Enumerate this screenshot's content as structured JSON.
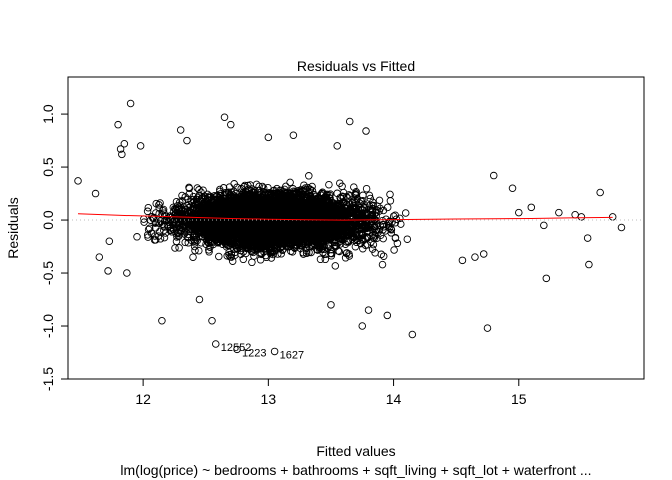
{
  "chart_data": {
    "type": "scatter",
    "title": "Residuals vs Fitted",
    "xlabel": "Fitted values",
    "subtitle": "lm(log(price) ~ bedrooms + bathrooms + sqft_living + sqft_lot + waterfront  ...",
    "ylabel": "Residuals",
    "xlim": [
      11.4,
      16.0
    ],
    "ylim": [
      -1.5,
      1.35
    ],
    "x_ticks": [
      12,
      13,
      14,
      15
    ],
    "y_ticks": [
      -1.5,
      -1.0,
      -0.5,
      0.0,
      0.5,
      1.0
    ],
    "x_tick_labels": [
      "12",
      "13",
      "14",
      "15"
    ],
    "y_tick_labels": [
      "-1.5",
      "-1.0",
      "-0.5",
      "0.0",
      "0.5",
      "1.0"
    ],
    "reference_line": {
      "y": 0,
      "style": "dotted",
      "color": "#bebebe"
    },
    "smoother": {
      "color": "#ff0000",
      "x": [
        11.48,
        11.8,
        12.1,
        12.4,
        12.7,
        13.0,
        13.3,
        13.6,
        13.9,
        14.2,
        14.5,
        14.8,
        15.1,
        15.4,
        15.75
      ],
      "y": [
        0.06,
        0.045,
        0.035,
        0.025,
        0.015,
        0.008,
        0.003,
        0.0,
        0.002,
        0.006,
        0.01,
        0.012,
        0.015,
        0.02,
        0.025
      ]
    },
    "point_color": "#000000",
    "points": [
      [
        11.48,
        0.37
      ],
      [
        11.62,
        0.25
      ],
      [
        11.65,
        -0.35
      ],
      [
        11.72,
        -0.48
      ],
      [
        11.73,
        -0.2
      ],
      [
        11.8,
        0.9
      ],
      [
        11.82,
        0.67
      ],
      [
        11.83,
        0.62
      ],
      [
        11.85,
        0.72
      ],
      [
        11.87,
        -0.5
      ],
      [
        11.9,
        1.1
      ],
      [
        11.98,
        0.7
      ],
      [
        12.3,
        0.85
      ],
      [
        12.55,
        -0.95
      ],
      [
        12.65,
        0.97
      ],
      [
        12.7,
        0.9
      ],
      [
        13.0,
        0.78
      ],
      [
        13.2,
        0.8
      ],
      [
        13.65,
        0.93
      ],
      [
        13.78,
        0.84
      ],
      [
        13.95,
        -0.9
      ],
      [
        14.15,
        -1.08
      ],
      [
        14.75,
        -1.02
      ],
      [
        14.8,
        0.42
      ],
      [
        14.95,
        0.3
      ],
      [
        15.0,
        0.07
      ],
      [
        15.1,
        0.12
      ],
      [
        15.2,
        -0.05
      ],
      [
        15.22,
        -0.55
      ],
      [
        15.32,
        0.07
      ],
      [
        15.45,
        0.05
      ],
      [
        15.5,
        0.03
      ],
      [
        15.55,
        -0.17
      ],
      [
        15.56,
        -0.42
      ],
      [
        15.65,
        0.26
      ],
      [
        15.75,
        0.03
      ],
      [
        15.82,
        -0.07
      ],
      [
        14.72,
        -0.32
      ],
      [
        14.65,
        -0.35
      ],
      [
        14.55,
        -0.38
      ],
      [
        12.58,
        -1.17
      ],
      [
        12.75,
        -1.22
      ],
      [
        13.05,
        -1.24
      ],
      [
        12.15,
        -0.95
      ],
      [
        12.45,
        -0.75
      ],
      [
        13.5,
        -0.8
      ],
      [
        13.75,
        -1.0
      ],
      [
        13.8,
        -0.85
      ],
      [
        12.35,
        0.75
      ],
      [
        13.55,
        0.7
      ]
    ],
    "annotations": [
      {
        "text": "12552",
        "x": 12.58,
        "y": -1.17
      },
      {
        "text": "1223",
        "x": 12.75,
        "y": -1.22
      },
      {
        "text": "1627",
        "x": 13.05,
        "y": -1.24
      }
    ]
  }
}
